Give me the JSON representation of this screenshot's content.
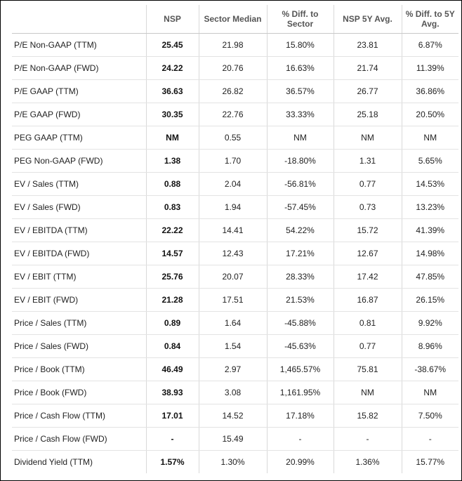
{
  "columns": [
    "",
    "NSP",
    "Sector Median",
    "% Diff. to Sector",
    "NSP 5Y Avg.",
    "% Diff. to 5Y Avg."
  ],
  "rows": [
    {
      "metric": "P/E Non-GAAP (TTM)",
      "nsp": "25.45",
      "sector_median": "21.98",
      "diff_sector": "15.80%",
      "avg_5y": "23.81",
      "diff_5y": "6.87%"
    },
    {
      "metric": "P/E Non-GAAP (FWD)",
      "nsp": "24.22",
      "sector_median": "20.76",
      "diff_sector": "16.63%",
      "avg_5y": "21.74",
      "diff_5y": "11.39%"
    },
    {
      "metric": "P/E GAAP (TTM)",
      "nsp": "36.63",
      "sector_median": "26.82",
      "diff_sector": "36.57%",
      "avg_5y": "26.77",
      "diff_5y": "36.86%"
    },
    {
      "metric": "P/E GAAP (FWD)",
      "nsp": "30.35",
      "sector_median": "22.76",
      "diff_sector": "33.33%",
      "avg_5y": "25.18",
      "diff_5y": "20.50%"
    },
    {
      "metric": "PEG GAAP (TTM)",
      "nsp": "NM",
      "sector_median": "0.55",
      "diff_sector": "NM",
      "avg_5y": "NM",
      "diff_5y": "NM"
    },
    {
      "metric": "PEG Non-GAAP (FWD)",
      "nsp": "1.38",
      "sector_median": "1.70",
      "diff_sector": "-18.80%",
      "avg_5y": "1.31",
      "diff_5y": "5.65%"
    },
    {
      "metric": "EV / Sales (TTM)",
      "nsp": "0.88",
      "sector_median": "2.04",
      "diff_sector": "-56.81%",
      "avg_5y": "0.77",
      "diff_5y": "14.53%"
    },
    {
      "metric": "EV / Sales (FWD)",
      "nsp": "0.83",
      "sector_median": "1.94",
      "diff_sector": "-57.45%",
      "avg_5y": "0.73",
      "diff_5y": "13.23%"
    },
    {
      "metric": "EV / EBITDA (TTM)",
      "nsp": "22.22",
      "sector_median": "14.41",
      "diff_sector": "54.22%",
      "avg_5y": "15.72",
      "diff_5y": "41.39%"
    },
    {
      "metric": "EV / EBITDA (FWD)",
      "nsp": "14.57",
      "sector_median": "12.43",
      "diff_sector": "17.21%",
      "avg_5y": "12.67",
      "diff_5y": "14.98%"
    },
    {
      "metric": "EV / EBIT (TTM)",
      "nsp": "25.76",
      "sector_median": "20.07",
      "diff_sector": "28.33%",
      "avg_5y": "17.42",
      "diff_5y": "47.85%"
    },
    {
      "metric": "EV / EBIT (FWD)",
      "nsp": "21.28",
      "sector_median": "17.51",
      "diff_sector": "21.53%",
      "avg_5y": "16.87",
      "diff_5y": "26.15%"
    },
    {
      "metric": "Price / Sales (TTM)",
      "nsp": "0.89",
      "sector_median": "1.64",
      "diff_sector": "-45.88%",
      "avg_5y": "0.81",
      "diff_5y": "9.92%"
    },
    {
      "metric": "Price / Sales (FWD)",
      "nsp": "0.84",
      "sector_median": "1.54",
      "diff_sector": "-45.63%",
      "avg_5y": "0.77",
      "diff_5y": "8.96%"
    },
    {
      "metric": "Price / Book (TTM)",
      "nsp": "46.49",
      "sector_median": "2.97",
      "diff_sector": "1,465.57%",
      "avg_5y": "75.81",
      "diff_5y": "-38.67%"
    },
    {
      "metric": "Price / Book (FWD)",
      "nsp": "38.93",
      "sector_median": "3.08",
      "diff_sector": "1,161.95%",
      "avg_5y": "NM",
      "diff_5y": "NM"
    },
    {
      "metric": "Price / Cash Flow (TTM)",
      "nsp": "17.01",
      "sector_median": "14.52",
      "diff_sector": "17.18%",
      "avg_5y": "15.82",
      "diff_5y": "7.50%"
    },
    {
      "metric": "Price / Cash Flow (FWD)",
      "nsp": "-",
      "sector_median": "15.49",
      "diff_sector": "-",
      "avg_5y": "-",
      "diff_5y": "-"
    },
    {
      "metric": "Dividend Yield (TTM)",
      "nsp": "1.57%",
      "sector_median": "1.30%",
      "diff_sector": "20.99%",
      "avg_5y": "1.36%",
      "diff_5y": "15.77%"
    }
  ]
}
